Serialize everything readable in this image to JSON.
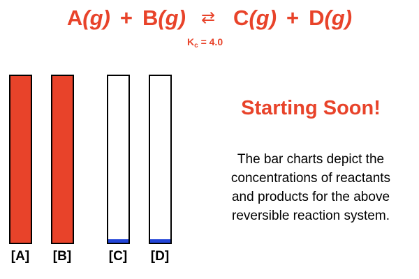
{
  "equation": {
    "reactant_1": {
      "species": "A",
      "phase": "(g)"
    },
    "plus_1": "+",
    "reactant_2": {
      "species": "B",
      "phase": "(g)"
    },
    "arrow": "⇄",
    "product_1": {
      "species": "C",
      "phase": "(g)"
    },
    "plus_2": "+",
    "product_2": {
      "species": "D",
      "phase": "(g)"
    }
  },
  "kc": {
    "symbol": "K",
    "subscript": "c",
    "equals_value": " = 4.0"
  },
  "chart_data": {
    "type": "bar",
    "categories": [
      "[A]",
      "[B]",
      "[C]",
      "[D]"
    ],
    "values": [
      1.0,
      1.0,
      0.02,
      0.02
    ],
    "ylim": [
      0,
      1
    ],
    "colors": [
      "#e8432a",
      "#e8432a",
      "#2345d8",
      "#2345d8"
    ]
  },
  "headline": "Starting Soon!",
  "description": {
    "lines": [
      "The bar charts depict the",
      "concentrations of reactants",
      "and products for the above",
      "reversible reaction system."
    ]
  },
  "colors": {
    "accent": "#e8432a",
    "product_fill": "#2345d8",
    "outline": "#000000"
  }
}
